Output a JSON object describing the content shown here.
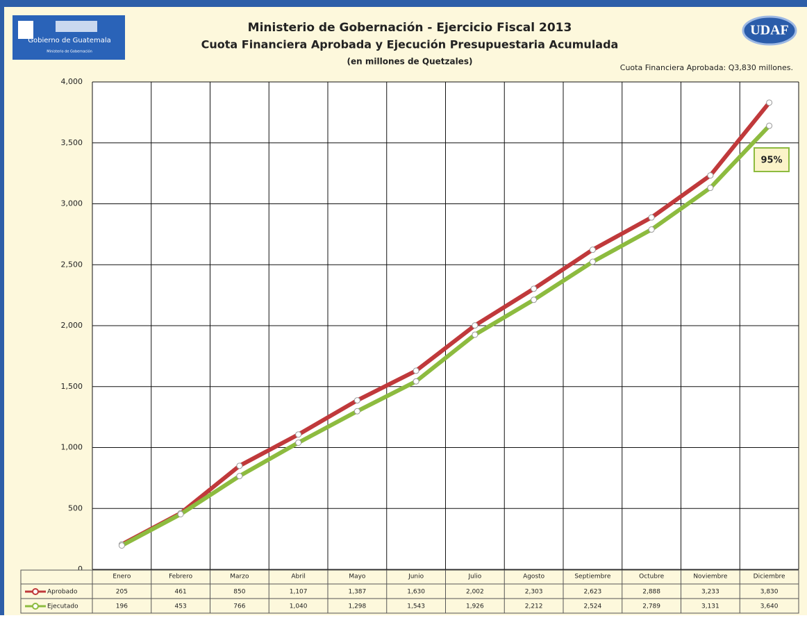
{
  "logo_left": {
    "title": "Gobierno de Guatemala",
    "subtitle": "Ministerio de Gobernación"
  },
  "logo_right": "UDAF",
  "chart_data": {
    "type": "line",
    "title": "Ministerio de Gobernación - Ejercicio Fiscal 2013",
    "subtitle": "Cuota Financiera Aprobada y Ejecución Presupuestaria Acumulada",
    "unit_note": "(en millones de Quetzales)",
    "note": "Cuota Financiera Aprobada: Q3,830 millones.",
    "annotation": "95%",
    "categories": [
      "Enero",
      "Febrero",
      "Marzo",
      "Abril",
      "Mayo",
      "Junio",
      "Julio",
      "Agosto",
      "Septiembre",
      "Octubre",
      "Noviembre",
      "Diciembre"
    ],
    "series": [
      {
        "name": "Aprobado",
        "color": "#c0393b",
        "values": [
          205,
          461,
          850,
          1107,
          1387,
          1630,
          2002,
          2303,
          2623,
          2888,
          3233,
          3830
        ],
        "value_labels": [
          "205",
          "461",
          "850",
          "1,107",
          "1,387",
          "1,630",
          "2,002",
          "2,303",
          "2,623",
          "2,888",
          "3,233",
          "3,830"
        ]
      },
      {
        "name": "Ejecutado",
        "color": "#8dbb3f",
        "values": [
          196,
          453,
          766,
          1040,
          1298,
          1543,
          1926,
          2212,
          2524,
          2789,
          3131,
          3640
        ],
        "value_labels": [
          "196",
          "453",
          "766",
          "1,040",
          "1,298",
          "1,543",
          "1,926",
          "2,212",
          "2,524",
          "2,789",
          "3,131",
          "3,640"
        ]
      }
    ],
    "ylim": [
      0,
      4000
    ],
    "yticks": [
      0,
      500,
      {
        "value": 1000,
        "label": "1,000"
      },
      {
        "value": 1500,
        "label": "1,500"
      },
      {
        "value": 2000,
        "label": "2,000"
      },
      {
        "value": 2500,
        "label": "2,500"
      },
      {
        "value": 3000,
        "label": "3,000"
      },
      {
        "value": 3500,
        "label": "3,500"
      },
      {
        "value": 4000,
        "label": "4,000"
      }
    ],
    "grid": true
  }
}
